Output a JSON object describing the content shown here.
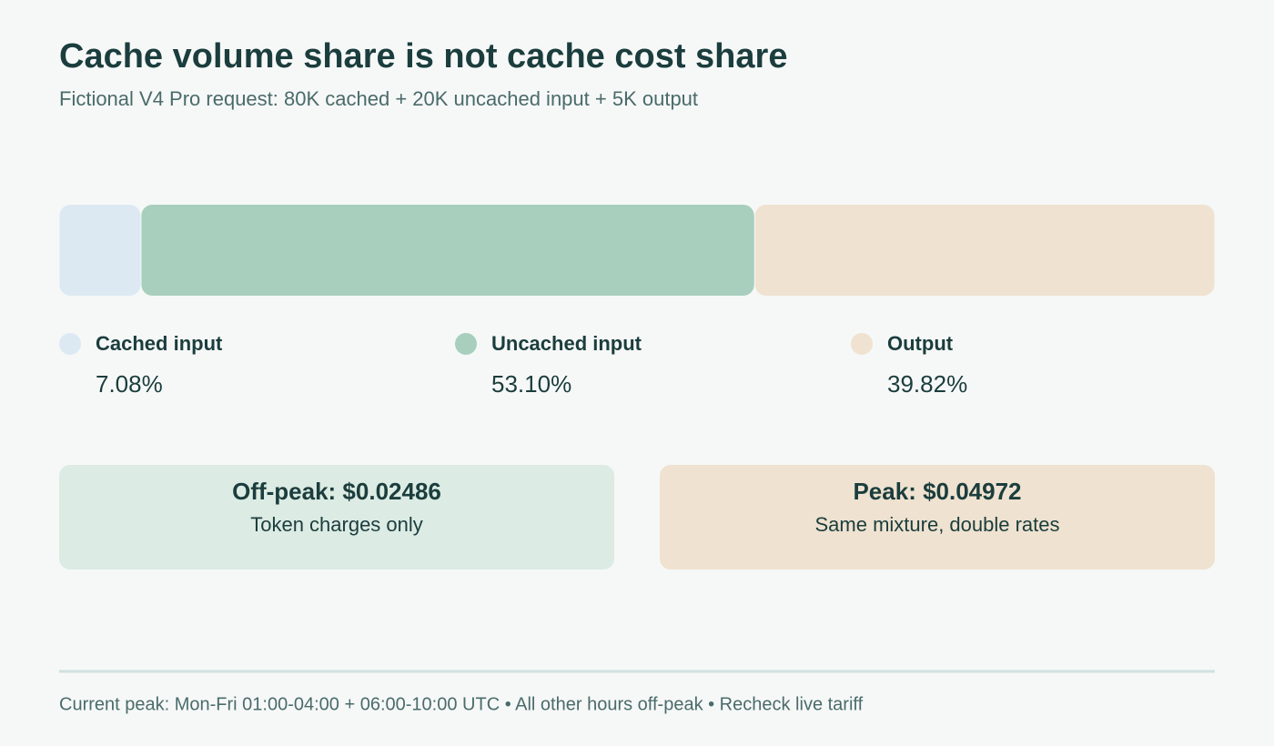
{
  "chart_data": {
    "type": "stacked-bar",
    "title": "Cache volume share is not cache cost share",
    "subtitle": "Fictional V4 Pro request: 80K cached + 20K uncached input + 5K output",
    "xlim": [
      0,
      100
    ],
    "series": [
      {
        "name": "Cached input",
        "color": "#dce9f2",
        "values": [
          7.08
        ],
        "value_labels": [
          "7.08%"
        ]
      },
      {
        "name": "Uncached input",
        "color": "#a8cfbd",
        "values": [
          53.1
        ],
        "value_labels": [
          "53.10%"
        ]
      },
      {
        "name": "Output",
        "color": "#efe2d0",
        "values": [
          39.82
        ],
        "value_labels": [
          "39.82%"
        ]
      }
    ]
  },
  "cards": [
    {
      "title": "Off-peak: $0.02486",
      "subtitle": "Token charges only",
      "color": "#dcebe3"
    },
    {
      "title": "Peak: $0.04972",
      "subtitle": "Same mixture, double rates",
      "color": "#efe2d0"
    }
  ],
  "footer": "Current peak: Mon-Fri 01:00-04:00 + 06:00-10:00 UTC • All other hours off-peak • Recheck live tariff"
}
